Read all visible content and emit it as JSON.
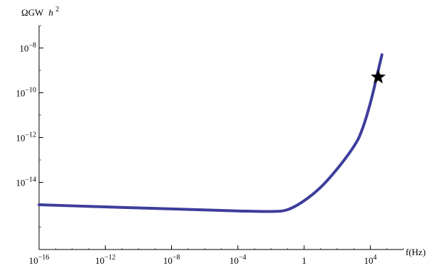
{
  "chart_data": {
    "type": "line",
    "x_scale": "log",
    "y_scale": "log",
    "xlim": [
      1e-16,
      1000000.0
    ],
    "ylim": [
      1e-17,
      1e-07
    ],
    "y_axis_label": {
      "main": "ΩGW",
      "var": "h",
      "sup": "2"
    },
    "x_axis_label": "f(Hz)",
    "x_ticks": [
      {
        "value": 1e-16,
        "base": "10",
        "exp": "−16"
      },
      {
        "value": 1e-12,
        "base": "10",
        "exp": "−12"
      },
      {
        "value": 1e-08,
        "base": "10",
        "exp": "−8"
      },
      {
        "value": 0.0001,
        "base": "10",
        "exp": "−4"
      },
      {
        "value": 1,
        "base": "1",
        "exp": ""
      },
      {
        "value": 10000.0,
        "base": "10",
        "exp": "4"
      }
    ],
    "y_ticks": [
      {
        "value": 1e-14,
        "base": "10",
        "exp": "−14"
      },
      {
        "value": 1e-12,
        "base": "10",
        "exp": "−12"
      },
      {
        "value": 1e-10,
        "base": "10",
        "exp": "−10"
      },
      {
        "value": 1e-08,
        "base": "10",
        "exp": "−8"
      }
    ],
    "series": [
      {
        "color": "#3d3d9c",
        "points": [
          [
            1e-16,
            1e-15
          ],
          [
            1e-12,
            8e-16
          ],
          [
            1e-08,
            6.5e-16
          ],
          [
            0.0001,
            5.3e-16
          ],
          [
            0.01,
            5e-16
          ],
          [
            0.1,
            6e-16
          ],
          [
            1,
            1.5e-15
          ],
          [
            10,
            6e-15
          ],
          [
            100,
            4e-14
          ],
          [
            1000,
            4e-13
          ],
          [
            3000,
            2e-12
          ],
          [
            10000,
            3.5e-11
          ],
          [
            30000,
            1e-09
          ],
          [
            50000,
            5e-09
          ]
        ]
      }
    ],
    "marker": {
      "shape": "star",
      "x": 30000,
      "y": 5e-10,
      "color": "#000000"
    }
  }
}
